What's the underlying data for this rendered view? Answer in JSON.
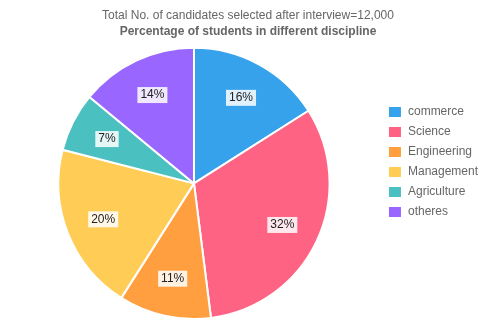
{
  "chart_data": {
    "type": "pie",
    "title": "Total No. of candidates selected after interview=12,000",
    "subtitle": "Percentage of students in different discipline",
    "categories": [
      "commerce",
      "Science",
      "Engineering",
      "Management",
      "Agriculture",
      "otheres"
    ],
    "values": [
      16,
      32,
      11,
      20,
      7,
      14
    ],
    "value_labels": [
      "16%",
      "32%",
      "11%",
      "20%",
      "7%",
      "14%"
    ],
    "data_labels": true,
    "legend": "right"
  }
}
